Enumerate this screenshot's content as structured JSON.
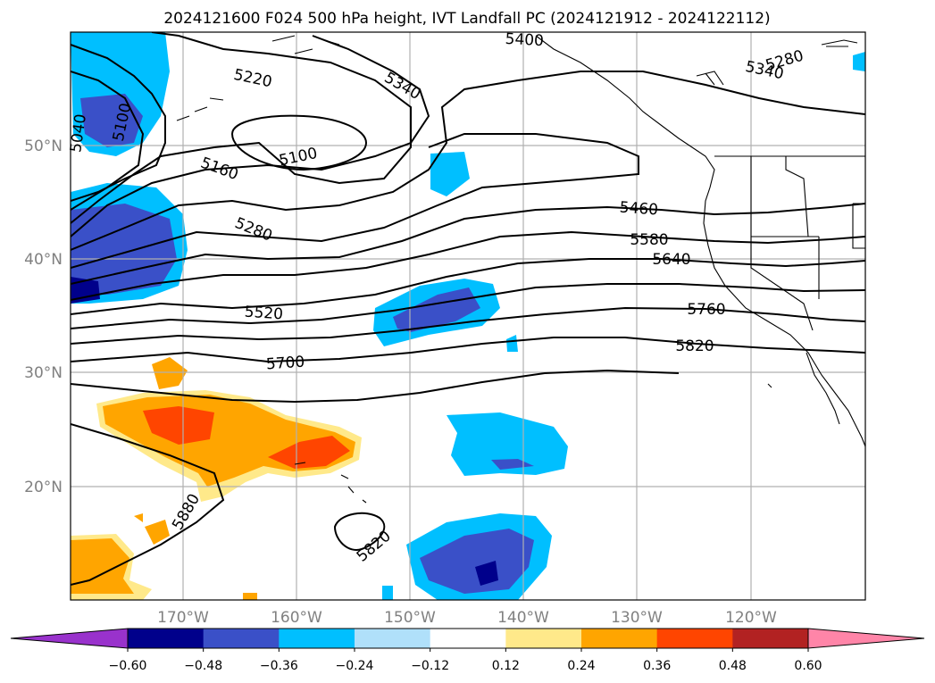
{
  "title": "2024121600 F024 500 hPa height, IVT Landfall PC (2024121912 - 2024122112)",
  "lat_labels": [
    "50°N",
    "40°N",
    "30°N",
    "20°N"
  ],
  "lon_labels": [
    "170°W",
    "160°W",
    "150°W",
    "140°W",
    "130°W",
    "120°W"
  ],
  "contour_labels": [
    "5040",
    "5100",
    "5220",
    "5340",
    "5400",
    "5280",
    "5340",
    "5100",
    "5160",
    "5280",
    "5460",
    "5580",
    "5640",
    "5520",
    "5760",
    "5700",
    "5820",
    "5880",
    "5820"
  ],
  "colorbar": {
    "ticks": [
      "−0.60",
      "−0.48",
      "−0.36",
      "−0.24",
      "−0.12",
      "0.12",
      "0.24",
      "0.36",
      "0.48",
      "0.60"
    ],
    "colors": [
      "#9932cc",
      "#00008b",
      "#3a50c8",
      "#00bfff",
      "#b0e0fa",
      "#ffffff",
      "#ffe98a",
      "#ffa500",
      "#ff4500",
      "#b22222",
      "#ff85a8"
    ]
  }
}
